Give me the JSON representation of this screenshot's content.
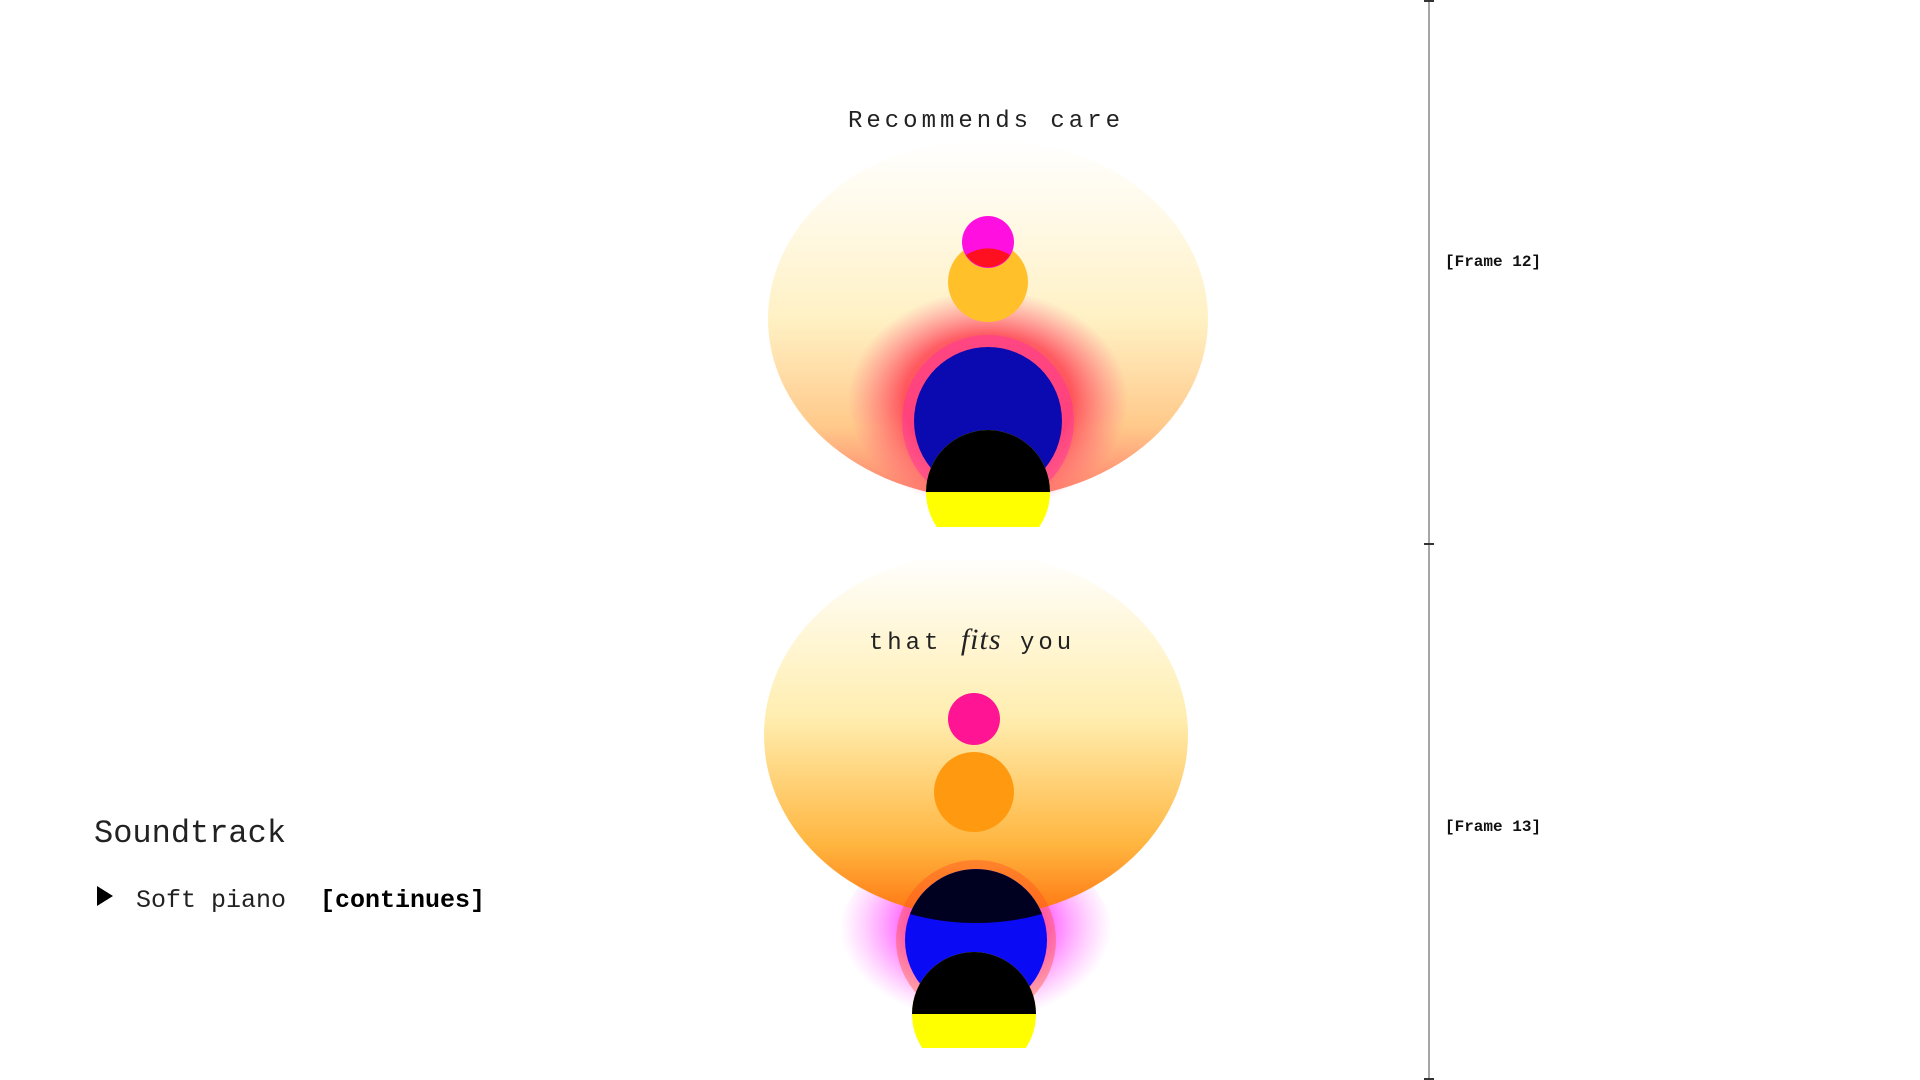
{
  "frames": [
    {
      "caption": [
        "Recommends care"
      ],
      "label": "[Frame 12]"
    },
    {
      "caption": [
        "that",
        "fits",
        "you"
      ],
      "label": "[Frame 13]"
    }
  ],
  "soundtrack": {
    "title": "Soundtrack",
    "track": "Soft piano",
    "status": "[continues]"
  }
}
